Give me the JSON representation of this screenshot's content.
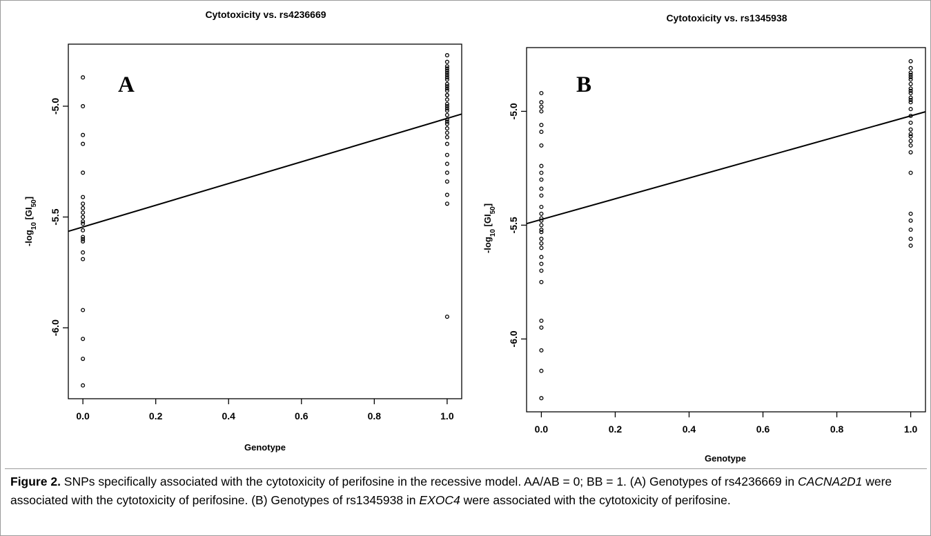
{
  "chart_data": [
    {
      "type": "scatter",
      "title": "Cytotoxicity vs. rs4236669",
      "panel_label": "A",
      "xlabel": "Genotype",
      "ylabel": "-log10 [GI50]",
      "xlim": [
        -0.04,
        1.04
      ],
      "ylim": [
        -6.32,
        -4.72
      ],
      "x_ticks": [
        0.0,
        0.2,
        0.4,
        0.6,
        0.8,
        1.0
      ],
      "x_tick_labels": [
        "0.0",
        "0.2",
        "0.4",
        "0.6",
        "0.8",
        "1.0"
      ],
      "y_ticks": [
        -6.0,
        -5.5,
        -5.0
      ],
      "y_tick_labels": [
        "-6.0",
        "-5.5",
        "-5.0"
      ],
      "grid": false,
      "series": [
        {
          "x": [
            0,
            0,
            0,
            0,
            0,
            0,
            0,
            0,
            0,
            0,
            0,
            0,
            0,
            0,
            0,
            0,
            0,
            0,
            0,
            0,
            0,
            0,
            1,
            1,
            1,
            1,
            1,
            1,
            1,
            1,
            1,
            1,
            1,
            1,
            1,
            1,
            1,
            1,
            1,
            1,
            1,
            1,
            1,
            1,
            1,
            1,
            1,
            1,
            1,
            1,
            1,
            1,
            1,
            1,
            1,
            1,
            1
          ],
          "y": [
            -4.87,
            -5.0,
            -5.13,
            -5.17,
            -5.3,
            -5.44,
            -5.46,
            -5.48,
            -5.5,
            -5.53,
            -5.56,
            -5.59,
            -5.6,
            -5.61,
            -5.66,
            -5.69,
            -5.92,
            -6.05,
            -6.14,
            -6.26,
            -5.41,
            -5.52,
            -4.77,
            -4.8,
            -4.82,
            -4.84,
            -4.85,
            -4.86,
            -4.88,
            -4.9,
            -4.92,
            -4.93,
            -4.95,
            -4.97,
            -4.99,
            -5.0,
            -5.02,
            -5.04,
            -5.06,
            -5.08,
            -5.1,
            -5.12,
            -5.14,
            -5.17,
            -5.22,
            -5.26,
            -5.3,
            -5.34,
            -5.4,
            -5.44,
            -5.95,
            -4.83,
            -4.87,
            -4.91,
            -4.95,
            -5.01,
            -5.07
          ]
        }
      ],
      "regression_line": {
        "intercept": -5.545,
        "slope": 0.49
      }
    },
    {
      "type": "scatter",
      "title": "Cytotoxicity vs. rs1345938",
      "panel_label": "B",
      "xlabel": "Genotype",
      "ylabel": "-log10 [GI50]",
      "xlim": [
        -0.04,
        1.04
      ],
      "ylim": [
        -6.32,
        -4.72
      ],
      "x_ticks": [
        0.0,
        0.2,
        0.4,
        0.6,
        0.8,
        1.0
      ],
      "x_tick_labels": [
        "0.0",
        "0.2",
        "0.4",
        "0.6",
        "0.8",
        "1.0"
      ],
      "y_ticks": [
        -6.0,
        -5.5,
        -5.0
      ],
      "y_tick_labels": [
        "-6.0",
        "-5.5",
        "-5.0"
      ],
      "grid": false,
      "series": [
        {
          "x": [
            0,
            0,
            0,
            0,
            0,
            0,
            0,
            0,
            0,
            0,
            0,
            0,
            0,
            0,
            0,
            0,
            0,
            0,
            0,
            0,
            0,
            0,
            0,
            0,
            0,
            0,
            0,
            0,
            0,
            0,
            0,
            1,
            1,
            1,
            1,
            1,
            1,
            1,
            1,
            1,
            1,
            1,
            1,
            1,
            1,
            1,
            1,
            1,
            1,
            1,
            1,
            1,
            1,
            1,
            1,
            1,
            1,
            1,
            1
          ],
          "y": [
            -4.92,
            -4.96,
            -4.98,
            -5.0,
            -5.06,
            -5.09,
            -5.15,
            -5.24,
            -5.27,
            -5.3,
            -5.37,
            -5.42,
            -5.45,
            -5.47,
            -5.5,
            -5.53,
            -5.56,
            -5.6,
            -5.64,
            -5.67,
            -5.75,
            -5.92,
            -5.95,
            -6.05,
            -6.14,
            -6.26,
            -5.34,
            -5.58,
            -5.7,
            -5.48,
            -5.52,
            -4.78,
            -4.81,
            -4.83,
            -4.85,
            -4.86,
            -4.88,
            -4.9,
            -4.92,
            -4.94,
            -4.96,
            -4.99,
            -5.02,
            -5.05,
            -5.08,
            -5.1,
            -5.13,
            -5.15,
            -5.18,
            -5.27,
            -5.45,
            -5.48,
            -5.52,
            -5.56,
            -5.59,
            -4.84,
            -4.91,
            -4.95,
            -5.11
          ]
        }
      ],
      "regression_line": {
        "intercept": -5.475,
        "slope": 0.455
      }
    }
  ],
  "caption": {
    "label": "Figure 2.",
    "text_1": " SNPs specifically associated with the cytotoxicity of perifosine in the recessive model. AA/AB = 0; BB = 1. (A) Genotypes of rs4236669 in ",
    "gene_1": "CACNA2D1",
    "text_2": " were associated with the cytotoxicity of perifosine. (B) Genotypes of rs1345938 in ",
    "gene_2": "EXOC4",
    "text_3": " were associated with the cytotoxicity of perifosine."
  }
}
